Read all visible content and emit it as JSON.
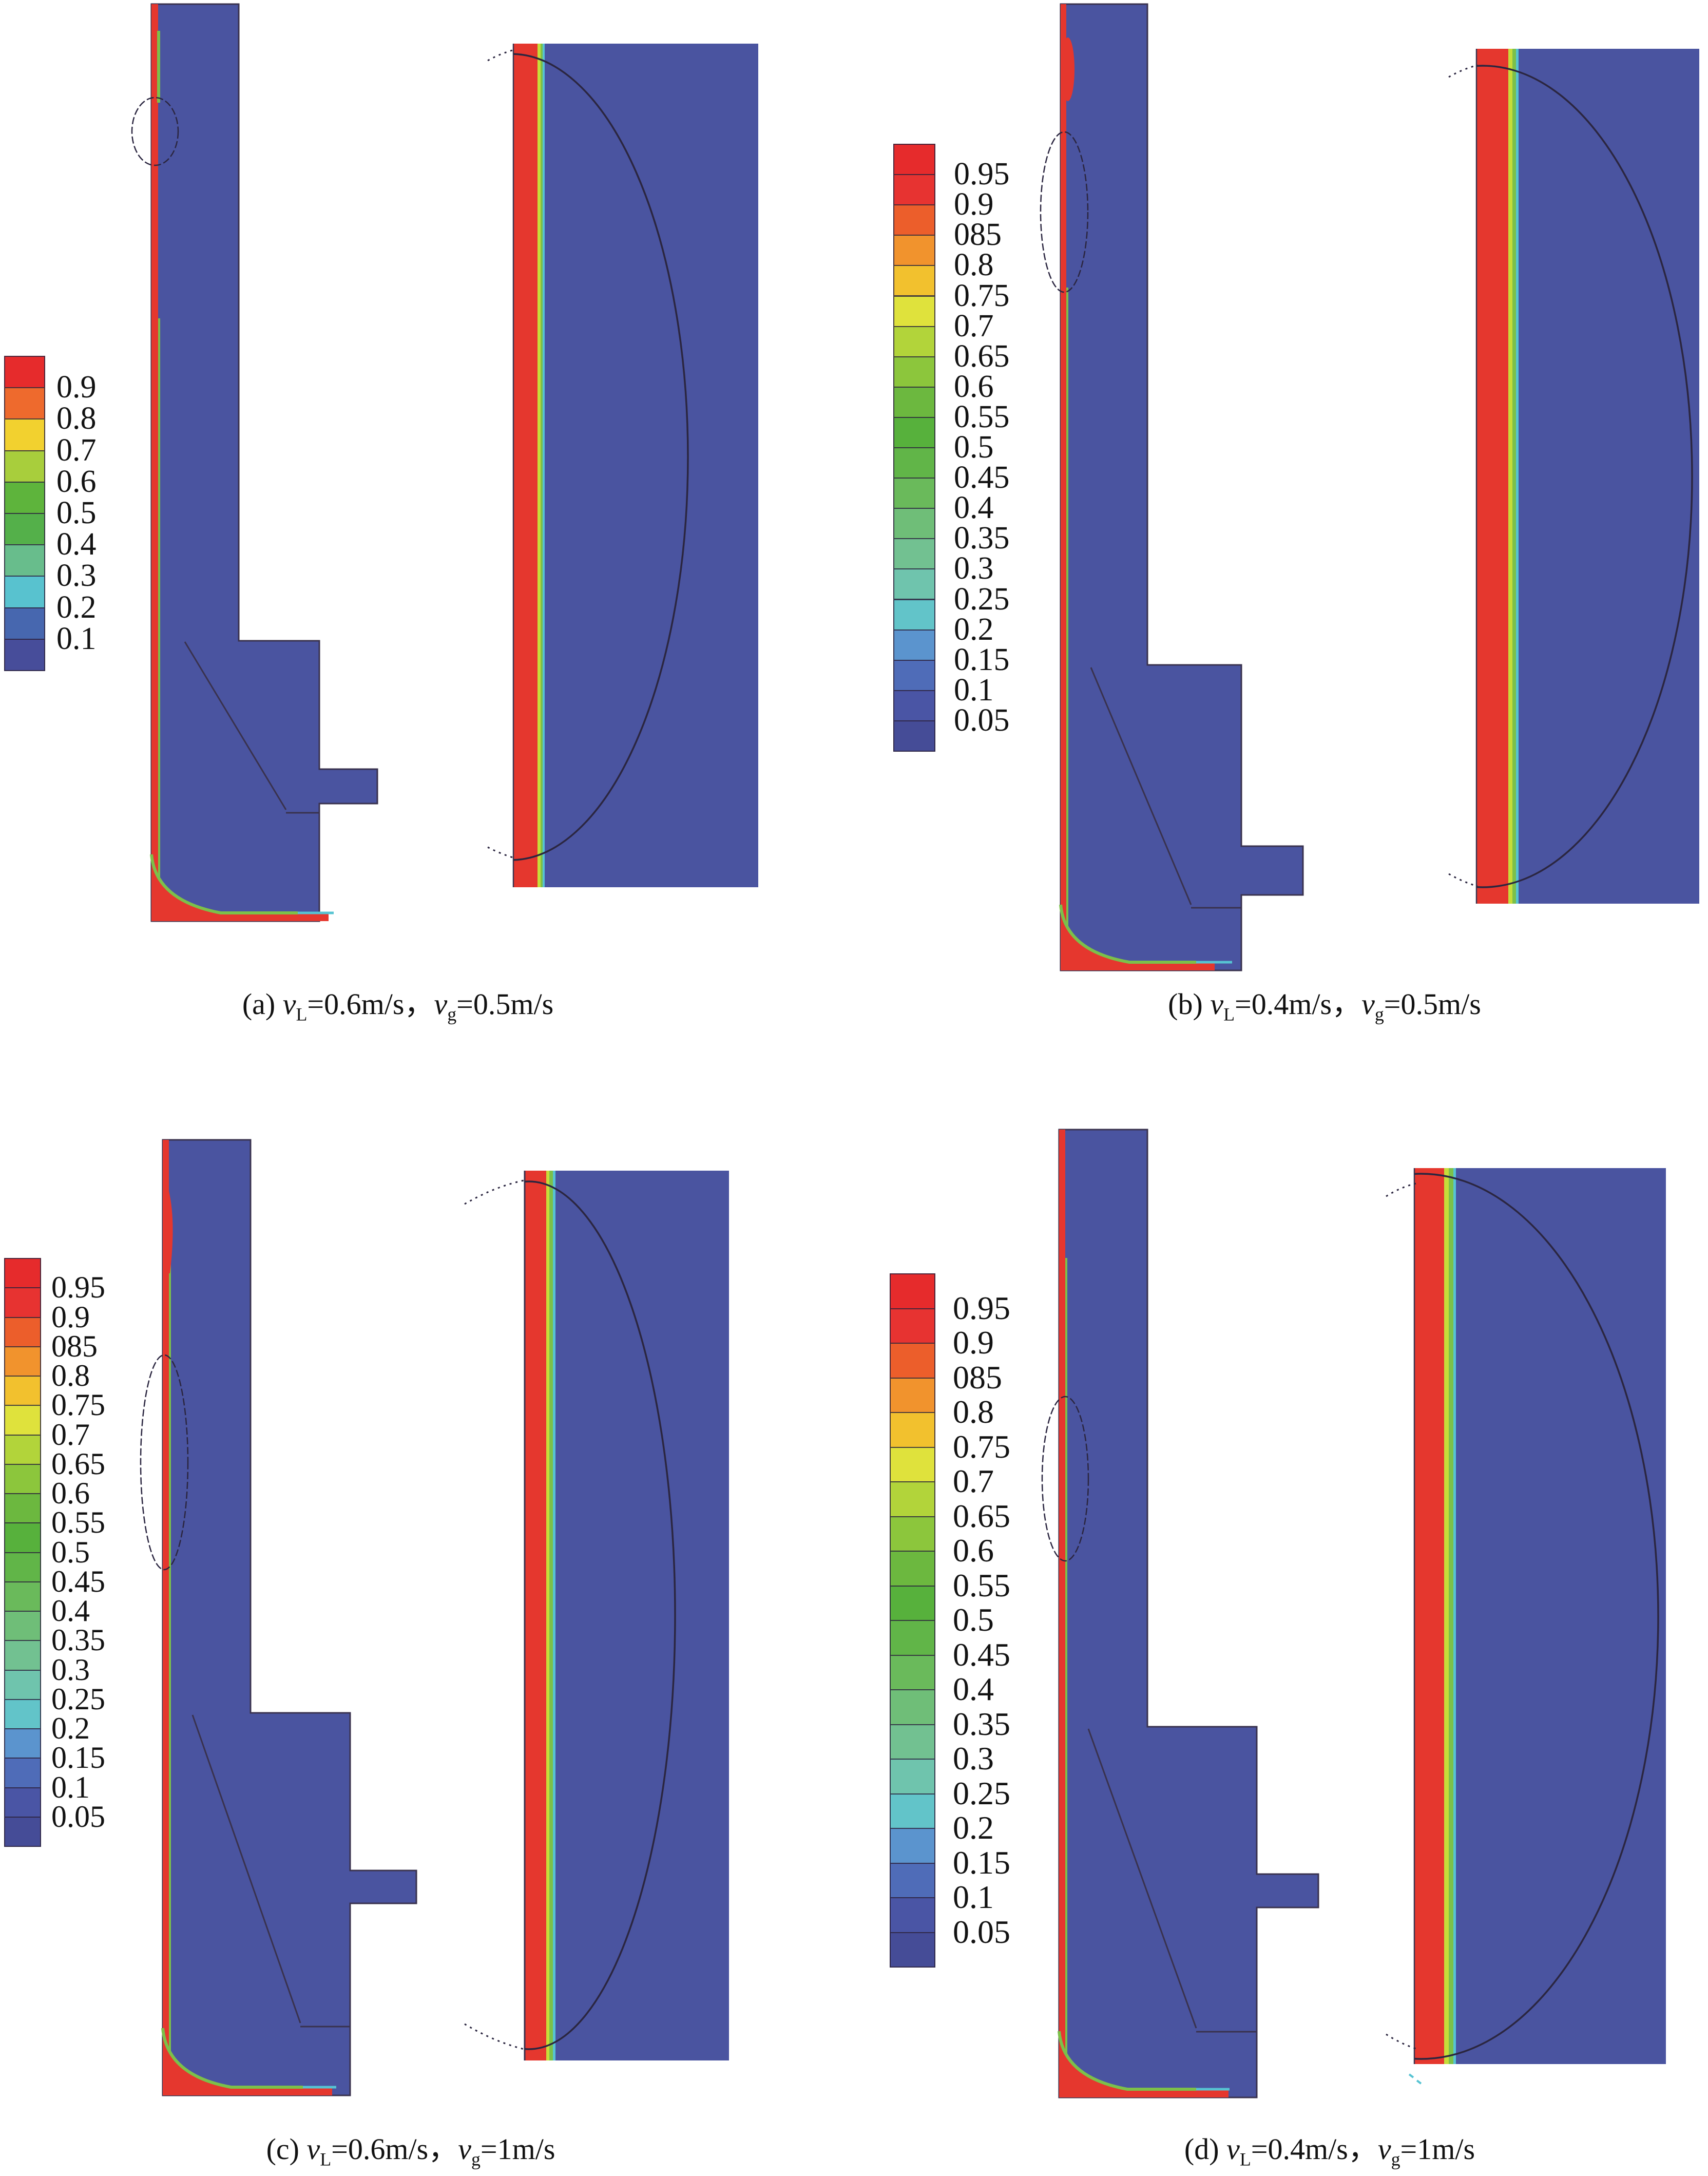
{
  "figure": {
    "background": "#ffffff",
    "description_visible_views": [
      "full-vessel-contour",
      "wall-region-zoom-with-ellipse"
    ]
  },
  "colors": {
    "gas_red": "#e5372e",
    "liquid_blue": "#4a54a0",
    "if_green": "#7cc04a",
    "if_yellow_green": "#c6dc3a",
    "if_cyan": "#56c3d2",
    "outline_dark": "#39324e"
  },
  "panels": [
    {
      "id": "a",
      "legend": {
        "labels": [
          "0.9",
          "0.8",
          "0.7",
          "0.6",
          "0.5",
          "0.4",
          "0.3",
          "0.2",
          "0.1"
        ],
        "band_colors": [
          "#e62b2c",
          "#ee6a2d",
          "#f2d12f",
          "#a8ce3c",
          "#5eb43c",
          "#54b04a",
          "#68bd8c",
          "#58c2cf",
          "#4767af",
          "#474d9a"
        ]
      },
      "caption": {
        "index": "(a) ",
        "v": "v",
        "sub_liquid": "L",
        "eq_liquid": "=0.6m/s",
        "comma": "，",
        "v2": "v",
        "sub_gas": "g",
        "eq_gas": "=0.5m/s"
      }
    },
    {
      "id": "b",
      "legend": {
        "labels": [
          "0.95",
          "0.9",
          "085",
          "0.8",
          "0.75",
          "0.7",
          "0.65",
          "0.6",
          "0.55",
          "0.5",
          "0.45",
          "0.4",
          "0.35",
          "0.3",
          "0.25",
          "0.2",
          "0.15",
          "0.1",
          "0.05"
        ],
        "band_colors": [
          "#e62b2c",
          "#e73331",
          "#ec5e2b",
          "#f1932d",
          "#f2c12e",
          "#dfe23c",
          "#b2d43a",
          "#8cc63c",
          "#6cb83f",
          "#57b13c",
          "#61b548",
          "#6aba5b",
          "#6fbe78",
          "#72c191",
          "#6fc4ad",
          "#62c4c9",
          "#5b94ce",
          "#4f6cb8",
          "#4a55a5",
          "#454c97"
        ]
      },
      "caption": {
        "index": "(b) ",
        "v": "v",
        "sub_liquid": "L",
        "eq_liquid": "=0.4m/s",
        "comma": "，",
        "v2": "v",
        "sub_gas": "g",
        "eq_gas": "=0.5m/s"
      }
    },
    {
      "id": "c",
      "legend": {
        "labels": [
          "0.95",
          "0.9",
          "085",
          "0.8",
          "0.75",
          "0.7",
          "0.65",
          "0.6",
          "0.55",
          "0.5",
          "0.45",
          "0.4",
          "0.35",
          "0.3",
          "0.25",
          "0.2",
          "0.15",
          "0.1",
          "0.05"
        ],
        "band_colors": [
          "#e62b2c",
          "#e73331",
          "#ec5e2b",
          "#f1932d",
          "#f2c12e",
          "#dfe23c",
          "#b2d43a",
          "#8cc63c",
          "#6cb83f",
          "#57b13c",
          "#61b548",
          "#6aba5b",
          "#6fbe78",
          "#72c191",
          "#6fc4ad",
          "#62c4c9",
          "#5b94ce",
          "#4f6cb8",
          "#4a55a5",
          "#454c97"
        ]
      },
      "caption": {
        "index": "(c) ",
        "v": "v",
        "sub_liquid": "L",
        "eq_liquid": "=0.6m/s",
        "comma": "，",
        "v2": "v",
        "sub_gas": "g",
        "eq_gas": "=1m/s"
      }
    },
    {
      "id": "d",
      "legend": {
        "labels": [
          "0.95",
          "0.9",
          "085",
          "0.8",
          "0.75",
          "0.7",
          "0.65",
          "0.6",
          "0.55",
          "0.5",
          "0.45",
          "0.4",
          "0.35",
          "0.3",
          "0.25",
          "0.2",
          "0.15",
          "0.1",
          "0.05"
        ],
        "band_colors": [
          "#e62b2c",
          "#e73331",
          "#ec5e2b",
          "#f1932d",
          "#f2c12e",
          "#dfe23c",
          "#b2d43a",
          "#8cc63c",
          "#6cb83f",
          "#57b13c",
          "#61b548",
          "#6aba5b",
          "#6fbe78",
          "#72c191",
          "#6fc4ad",
          "#62c4c9",
          "#5b94ce",
          "#4f6cb8",
          "#4a55a5",
          "#454c97"
        ]
      },
      "caption": {
        "index": "(d) ",
        "v": "v",
        "sub_liquid": "L",
        "eq_liquid": "=0.4m/s",
        "comma": "，",
        "v2": "v",
        "sub_gas": "g",
        "eq_gas": "=1m/s"
      }
    }
  ],
  "chart_data": [
    {
      "type": "heatmap",
      "subtype": "cfd-contour-volume-fraction",
      "title": "(a) vL=0.6m/s, vg=0.5m/s",
      "conditions": {
        "v_L_m_per_s": 0.6,
        "v_g_m_per_s": 0.5
      },
      "legend_levels": [
        0.9,
        0.8,
        0.7,
        0.6,
        0.5,
        0.4,
        0.3,
        0.2,
        0.1
      ],
      "legend_position": "left",
      "views": [
        "vessel-cross-section",
        "near-wall-zoom"
      ],
      "field_summary": "thin red (≈0.9–1) gas film along left wall of tall vessel; bulk blue ≈0.1; red liquid-film pool along vessel bottom with green/cyan interface; zoom view shows red wall film, narrow green-cyan transition, blue bulk, elliptical magnifier outline"
    },
    {
      "type": "heatmap",
      "subtype": "cfd-contour-volume-fraction",
      "title": "(b) vL=0.4m/s, vg=0.5m/s",
      "conditions": {
        "v_L_m_per_s": 0.4,
        "v_g_m_per_s": 0.5
      },
      "legend_levels": [
        0.95,
        0.9,
        0.85,
        0.8,
        0.75,
        0.7,
        0.65,
        0.6,
        0.55,
        0.5,
        0.45,
        0.4,
        0.35,
        0.3,
        0.25,
        0.2,
        0.15,
        0.1,
        0.05
      ],
      "legend_position": "left",
      "views": [
        "vessel-cross-section",
        "near-wall-zoom"
      ],
      "field_summary": "same geometry; wider red wall film in zoom view; bulk ≈0.05–0.1; large elliptical magnifier arc spanning zoom rectangle"
    },
    {
      "type": "heatmap",
      "subtype": "cfd-contour-volume-fraction",
      "title": "(c) vL=0.6m/s, vg=1m/s",
      "conditions": {
        "v_L_m_per_s": 0.6,
        "v_g_m_per_s": 1.0
      },
      "legend_levels": [
        0.95,
        0.9,
        0.85,
        0.8,
        0.75,
        0.7,
        0.65,
        0.6,
        0.55,
        0.5,
        0.45,
        0.4,
        0.35,
        0.3,
        0.25,
        0.2,
        0.15,
        0.1,
        0.05
      ],
      "legend_position": "left",
      "views": [
        "vessel-cross-section",
        "near-wall-zoom"
      ],
      "field_summary": "red wall film with green fringe; tall inspection ellipse on column wall; liquid pool at vessel bottom; zoom shows red film, green/cyan transition, blue bulk"
    },
    {
      "type": "heatmap",
      "subtype": "cfd-contour-volume-fraction",
      "title": "(d) vL=0.4m/s, vg=1m/s",
      "conditions": {
        "v_L_m_per_s": 0.4,
        "v_g_m_per_s": 1.0
      },
      "legend_levels": [
        0.95,
        0.9,
        0.85,
        0.8,
        0.75,
        0.7,
        0.65,
        0.6,
        0.55,
        0.5,
        0.45,
        0.4,
        0.35,
        0.3,
        0.25,
        0.2,
        0.15,
        0.1,
        0.05
      ],
      "legend_position": "left",
      "views": [
        "vessel-cross-section",
        "near-wall-zoom"
      ],
      "field_summary": "widest red wall film among cases; big elliptical magnifier arc; bulk blue ≈0.05–0.1; liquid pool interface at bottom"
    }
  ]
}
